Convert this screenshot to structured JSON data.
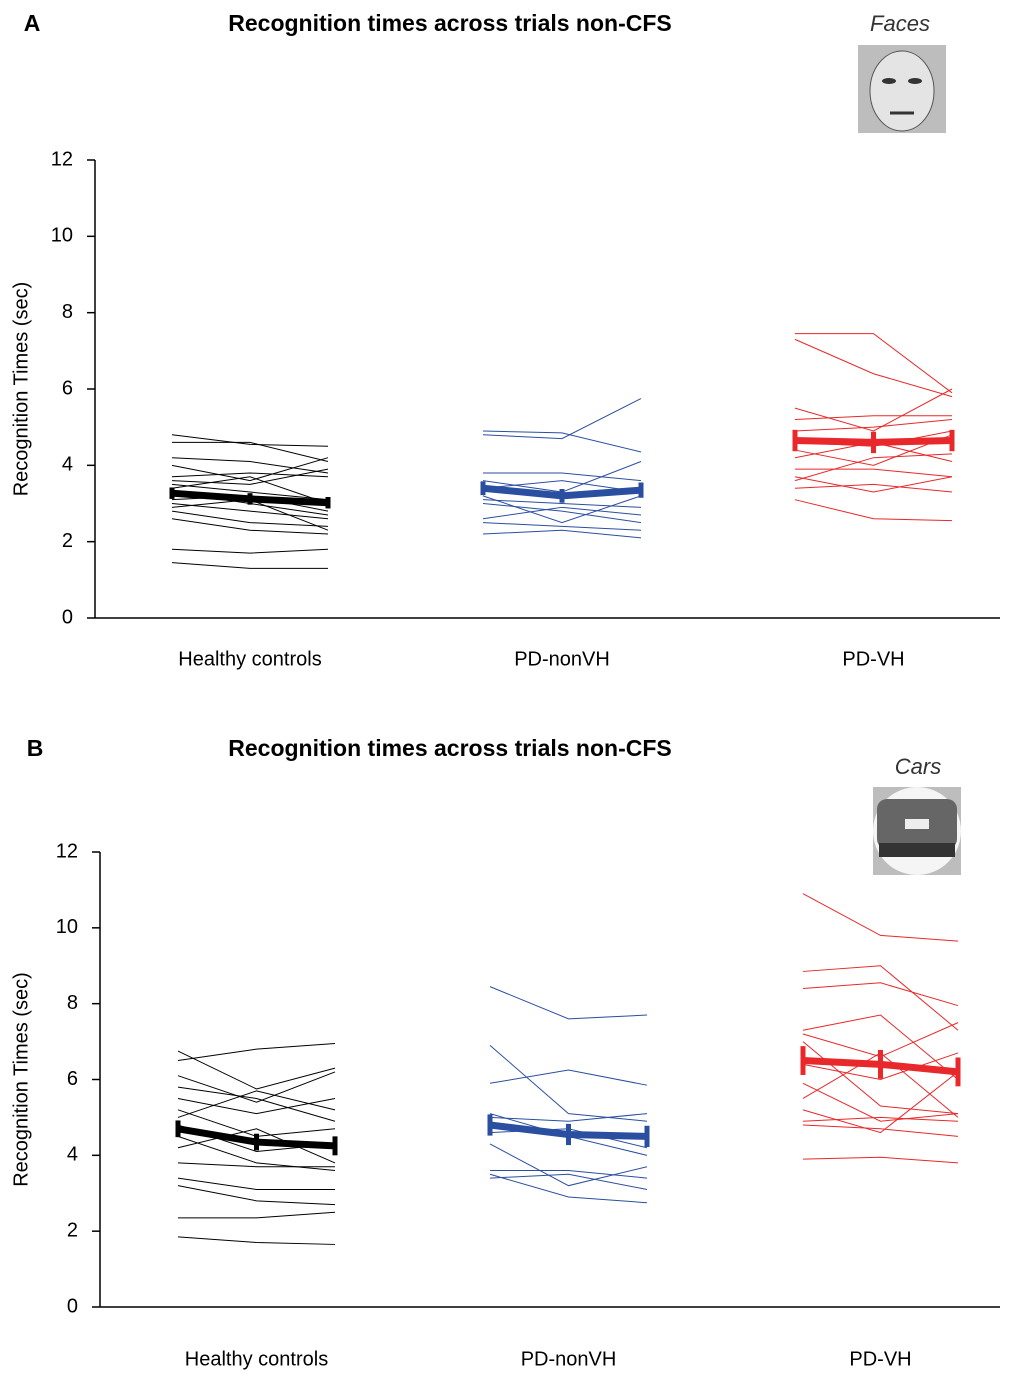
{
  "chart_data": [
    {
      "type": "line",
      "panel": "A",
      "title": "Recognition times across trials non-CFS",
      "image_label": "Faces",
      "ylabel": "Recognition Times (sec)",
      "ylim": [
        0,
        12
      ],
      "yticks": [
        0,
        2,
        4,
        6,
        8,
        10,
        12
      ],
      "groups": [
        {
          "name": "Healthy controls",
          "color": "#000000",
          "subjects": [
            [
              4.8,
              4.55,
              4.5
            ],
            [
              4.6,
              4.6,
              4.1
            ],
            [
              4.2,
              4.1,
              3.8
            ],
            [
              3.7,
              3.8,
              3.7
            ],
            [
              3.6,
              3.5,
              3.9
            ],
            [
              3.5,
              3.3,
              3.1
            ],
            [
              3.3,
              3.0,
              2.7
            ],
            [
              3.1,
              3.2,
              2.8
            ],
            [
              3.0,
              2.8,
              2.6
            ],
            [
              2.9,
              3.1,
              2.3
            ],
            [
              2.8,
              2.5,
              2.4
            ],
            [
              2.6,
              2.3,
              2.2
            ],
            [
              1.8,
              1.7,
              1.8
            ],
            [
              1.45,
              1.3,
              1.3
            ],
            [
              4.0,
              3.6,
              4.2
            ],
            [
              3.4,
              3.7,
              3.0
            ]
          ],
          "mean": [
            3.27,
            3.12,
            3.02
          ],
          "error": [
            0.15,
            0.15,
            0.15
          ]
        },
        {
          "name": "PD-nonVH",
          "color": "#2a4ea0",
          "subjects": [
            [
              4.9,
              4.85,
              4.35
            ],
            [
              4.8,
              4.7,
              5.75
            ],
            [
              3.8,
              3.8,
              3.6
            ],
            [
              3.6,
              3.3,
              4.1
            ],
            [
              3.4,
              3.6,
              3.3
            ],
            [
              3.2,
              2.5,
              3.2
            ],
            [
              3.1,
              3.0,
              2.9
            ],
            [
              2.6,
              2.9,
              2.7
            ],
            [
              2.5,
              2.4,
              2.3
            ],
            [
              2.2,
              2.3,
              2.1
            ],
            [
              3.0,
              2.8,
              2.5
            ]
          ],
          "mean": [
            3.4,
            3.2,
            3.35
          ],
          "error": [
            0.18,
            0.18,
            0.2
          ]
        },
        {
          "name": "PD-VH",
          "color": "#e8282a",
          "subjects": [
            [
              7.45,
              7.45,
              5.9
            ],
            [
              7.3,
              6.4,
              5.8
            ],
            [
              5.5,
              4.9,
              6.0
            ],
            [
              5.2,
              5.3,
              5.3
            ],
            [
              4.9,
              5.0,
              5.2
            ],
            [
              4.6,
              4.5,
              4.9
            ],
            [
              4.4,
              4.0,
              4.8
            ],
            [
              4.2,
              4.6,
              4.1
            ],
            [
              3.9,
              3.9,
              3.7
            ],
            [
              3.7,
              3.3,
              3.7
            ],
            [
              3.4,
              3.5,
              3.3
            ],
            [
              3.1,
              2.6,
              2.55
            ],
            [
              3.6,
              4.2,
              4.3
            ]
          ],
          "mean": [
            4.65,
            4.6,
            4.65
          ],
          "error": [
            0.28,
            0.28,
            0.28
          ]
        }
      ]
    },
    {
      "type": "line",
      "panel": "B",
      "title": "Recognition times across trials non-CFS",
      "image_label": "Cars",
      "ylabel": "Recognition Times (sec)",
      "ylim": [
        0,
        12
      ],
      "yticks": [
        0,
        2,
        4,
        6,
        8,
        10,
        12
      ],
      "groups": [
        {
          "name": "Healthy controls",
          "color": "#000000",
          "subjects": [
            [
              6.75,
              5.75,
              6.3
            ],
            [
              6.5,
              6.8,
              6.95
            ],
            [
              6.1,
              5.4,
              6.2
            ],
            [
              5.8,
              5.5,
              4.9
            ],
            [
              5.5,
              5.1,
              5.5
            ],
            [
              5.2,
              4.5,
              4.7
            ],
            [
              4.8,
              4.1,
              4.3
            ],
            [
              4.5,
              3.8,
              3.6
            ],
            [
              4.2,
              4.7,
              3.8
            ],
            [
              3.8,
              3.7,
              3.7
            ],
            [
              3.4,
              3.1,
              3.1
            ],
            [
              3.2,
              2.8,
              2.7
            ],
            [
              2.35,
              2.35,
              2.5
            ],
            [
              1.85,
              1.7,
              1.65
            ],
            [
              5.0,
              5.7,
              5.2
            ]
          ],
          "mean": [
            4.7,
            4.35,
            4.25
          ],
          "error": [
            0.22,
            0.22,
            0.25
          ]
        },
        {
          "name": "PD-nonVH",
          "color": "#2a4ea0",
          "subjects": [
            [
              8.45,
              7.6,
              7.7
            ],
            [
              6.9,
              5.1,
              4.9
            ],
            [
              5.9,
              6.25,
              5.85
            ],
            [
              5.0,
              4.9,
              5.1
            ],
            [
              4.6,
              4.7,
              4.2
            ],
            [
              4.3,
              3.2,
              3.7
            ],
            [
              3.6,
              3.6,
              3.4
            ],
            [
              3.5,
              2.9,
              2.75
            ],
            [
              3.4,
              3.5,
              3.1
            ],
            [
              5.1,
              4.5,
              4.0
            ]
          ],
          "mean": [
            4.8,
            4.55,
            4.5
          ],
          "error": [
            0.28,
            0.28,
            0.28
          ]
        },
        {
          "name": "PD-VH",
          "color": "#e8282a",
          "subjects": [
            [
              10.9,
              9.8,
              9.65
            ],
            [
              8.85,
              9.0,
              7.3
            ],
            [
              8.4,
              8.55,
              7.95
            ],
            [
              7.3,
              7.7,
              6.0
            ],
            [
              7.2,
              6.6,
              7.5
            ],
            [
              6.4,
              6.0,
              6.7
            ],
            [
              5.9,
              4.9,
              5.1
            ],
            [
              5.5,
              6.7,
              5.0
            ],
            [
              5.2,
              4.6,
              6.2
            ],
            [
              4.9,
              5.0,
              4.9
            ],
            [
              4.8,
              4.7,
              4.5
            ],
            [
              3.9,
              3.95,
              3.8
            ],
            [
              7.0,
              5.3,
              5.1
            ]
          ],
          "mean": [
            6.5,
            6.4,
            6.2
          ],
          "error": [
            0.38,
            0.38,
            0.38
          ]
        }
      ]
    }
  ]
}
